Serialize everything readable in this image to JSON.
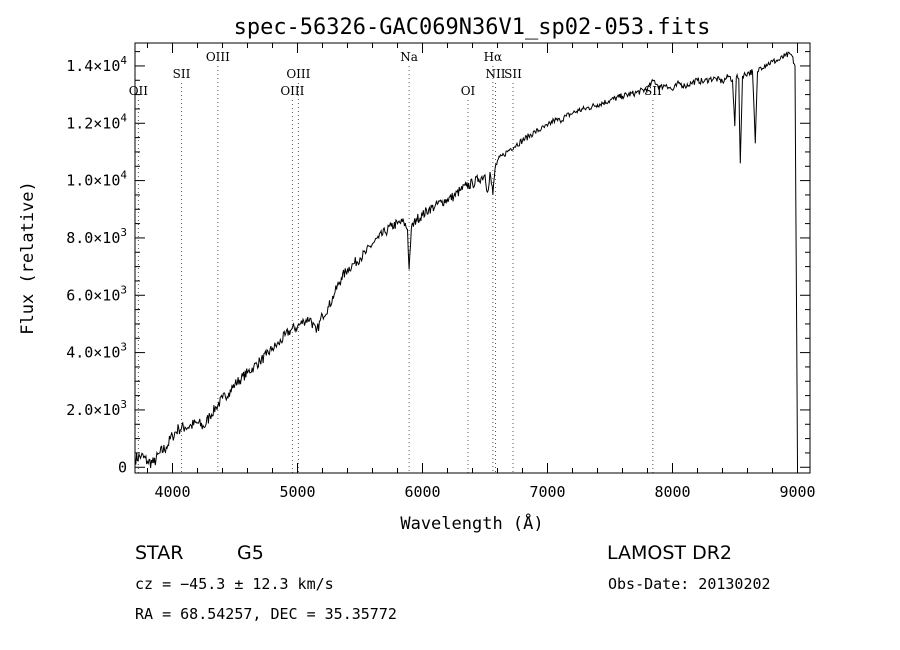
{
  "chart_data": {
    "type": "line",
    "title": "spec-56326-GAC069N36V1_sp02-053.fits",
    "xlabel": "Wavelength (Å)",
    "ylabel": "Flux (relative)",
    "xlim": [
      3700,
      9100
    ],
    "ylim": [
      -200,
      14800
    ],
    "grid": false,
    "x_ticks": [
      {
        "value": 4000,
        "label": "4000"
      },
      {
        "value": 5000,
        "label": "5000"
      },
      {
        "value": 6000,
        "label": "6000"
      },
      {
        "value": 7000,
        "label": "7000"
      },
      {
        "value": 8000,
        "label": "8000"
      },
      {
        "value": 9000,
        "label": "9000"
      }
    ],
    "y_ticks": [
      {
        "value": 0,
        "mantissa": "0",
        "exponent": ""
      },
      {
        "value": 2000,
        "mantissa": "2.0×10",
        "exponent": "3"
      },
      {
        "value": 4000,
        "mantissa": "4.0×10",
        "exponent": "3"
      },
      {
        "value": 6000,
        "mantissa": "6.0×10",
        "exponent": "3"
      },
      {
        "value": 8000,
        "mantissa": "8.0×10",
        "exponent": "3"
      },
      {
        "value": 10000,
        "mantissa": "1.0×10",
        "exponent": "4"
      },
      {
        "value": 12000,
        "mantissa": "1.2×10",
        "exponent": "4"
      },
      {
        "value": 14000,
        "mantissa": "1.4×10",
        "exponent": "4"
      }
    ],
    "emission_lines": [
      {
        "label": "OII",
        "wavelength": 3727,
        "row": 3
      },
      {
        "label": "SII",
        "wavelength": 4072,
        "row": 2
      },
      {
        "label": "OIII",
        "wavelength": 4363,
        "row": 1
      },
      {
        "label": "OIII",
        "wavelength": 4959,
        "row": 3
      },
      {
        "label": "OIII",
        "wavelength": 5007,
        "row": 2
      },
      {
        "label": "Na",
        "wavelength": 5893,
        "row": 1
      },
      {
        "label": "OI",
        "wavelength": 6364,
        "row": 3
      },
      {
        "label": "Hα",
        "wavelength": 6563,
        "row": 1
      },
      {
        "label": "NII",
        "wavelength": 6584,
        "row": 2
      },
      {
        "label": "SII",
        "wavelength": 6724,
        "row": 2
      },
      {
        "label": "SII",
        "wavelength": 7843,
        "row": 3
      }
    ],
    "series": [
      {
        "points": [
          [
            3700,
            300
          ],
          [
            3750,
            400
          ],
          [
            3800,
            200
          ],
          [
            3850,
            150
          ],
          [
            3900,
            500
          ],
          [
            3950,
            700
          ],
          [
            4000,
            1100
          ],
          [
            4050,
            1350
          ],
          [
            4100,
            1400
          ],
          [
            4150,
            1450
          ],
          [
            4200,
            1550
          ],
          [
            4250,
            1400
          ],
          [
            4300,
            1800
          ],
          [
            4350,
            2100
          ],
          [
            4400,
            2400
          ],
          [
            4450,
            2600
          ],
          [
            4500,
            2900
          ],
          [
            4550,
            3100
          ],
          [
            4600,
            3300
          ],
          [
            4650,
            3500
          ],
          [
            4700,
            3700
          ],
          [
            4750,
            3900
          ],
          [
            4800,
            4150
          ],
          [
            4850,
            4300
          ],
          [
            4900,
            4600
          ],
          [
            4950,
            4800
          ],
          [
            5000,
            4900
          ],
          [
            5050,
            5100
          ],
          [
            5100,
            5200
          ],
          [
            5150,
            4700
          ],
          [
            5200,
            5300
          ],
          [
            5250,
            5600
          ],
          [
            5300,
            6100
          ],
          [
            5350,
            6600
          ],
          [
            5400,
            6900
          ],
          [
            5450,
            7100
          ],
          [
            5500,
            7300
          ],
          [
            5550,
            7500
          ],
          [
            5600,
            7800
          ],
          [
            5650,
            8000
          ],
          [
            5700,
            8200
          ],
          [
            5750,
            8400
          ],
          [
            5800,
            8500
          ],
          [
            5850,
            8550
          ],
          [
            5880,
            8300
          ],
          [
            5893,
            6900
          ],
          [
            5910,
            8300
          ],
          [
            5950,
            8650
          ],
          [
            6000,
            8800
          ],
          [
            6050,
            9000
          ],
          [
            6100,
            9100
          ],
          [
            6150,
            9250
          ],
          [
            6200,
            9350
          ],
          [
            6250,
            9450
          ],
          [
            6300,
            9650
          ],
          [
            6350,
            9800
          ],
          [
            6400,
            9900
          ],
          [
            6450,
            10050
          ],
          [
            6500,
            10200
          ],
          [
            6520,
            9600
          ],
          [
            6540,
            10300
          ],
          [
            6563,
            9500
          ],
          [
            6580,
            10400
          ],
          [
            6600,
            10700
          ],
          [
            6650,
            10900
          ],
          [
            6700,
            11100
          ],
          [
            6750,
            11250
          ],
          [
            6800,
            11400
          ],
          [
            6850,
            11550
          ],
          [
            6900,
            11700
          ],
          [
            6950,
            11800
          ],
          [
            7000,
            11900
          ],
          [
            7050,
            12100
          ],
          [
            7100,
            12100
          ],
          [
            7150,
            12250
          ],
          [
            7200,
            12350
          ],
          [
            7250,
            12450
          ],
          [
            7300,
            12500
          ],
          [
            7400,
            12650
          ],
          [
            7500,
            12800
          ],
          [
            7600,
            12950
          ],
          [
            7700,
            13050
          ],
          [
            7800,
            13200
          ],
          [
            7850,
            13500
          ],
          [
            7900,
            13250
          ],
          [
            7950,
            13350
          ],
          [
            8000,
            13150
          ],
          [
            8050,
            13400
          ],
          [
            8100,
            13300
          ],
          [
            8150,
            13400
          ],
          [
            8200,
            13500
          ],
          [
            8250,
            13450
          ],
          [
            8300,
            13550
          ],
          [
            8350,
            13550
          ],
          [
            8400,
            13450
          ],
          [
            8450,
            13650
          ],
          [
            8480,
            13500
          ],
          [
            8498,
            11900
          ],
          [
            8510,
            13600
          ],
          [
            8530,
            13550
          ],
          [
            8542,
            10600
          ],
          [
            8560,
            13650
          ],
          [
            8600,
            13750
          ],
          [
            8640,
            13800
          ],
          [
            8662,
            11300
          ],
          [
            8680,
            13800
          ],
          [
            8700,
            13950
          ],
          [
            8750,
            14050
          ],
          [
            8800,
            14150
          ],
          [
            8850,
            14200
          ],
          [
            8900,
            14350
          ],
          [
            8950,
            14400
          ],
          [
            8980,
            14000
          ],
          [
            9000,
            0
          ]
        ]
      }
    ]
  },
  "info": {
    "class": "STAR",
    "subclass": "G5",
    "survey": "LAMOST DR2",
    "cz": "cz = −45.3 ± 12.3 km/s",
    "obs_date": "Obs-Date: 20130202",
    "coords": "RA =  68.54257, DEC =  35.35772"
  }
}
